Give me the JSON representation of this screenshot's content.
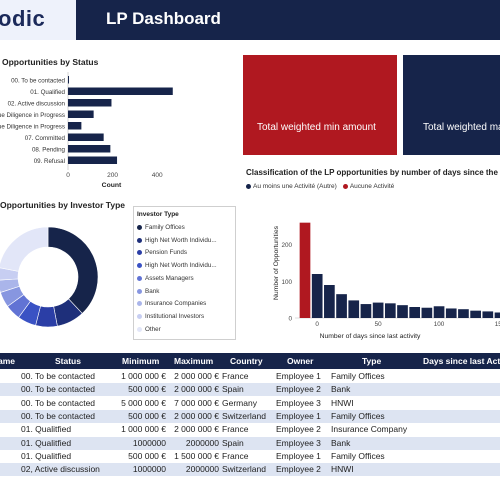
{
  "header": {
    "logo": "odic",
    "title": "LP Dashboard"
  },
  "status_chart": {
    "title": "Opportunities by Status",
    "xlabel": "Count",
    "ticks": [
      "0",
      "200",
      "400"
    ],
    "categories": [
      "00. To be contacted",
      "01. Qualified",
      "02. Active discussion",
      "ue Diligence in Progress",
      "ue Diligence in Progress",
      "07. Committed",
      "08. Pending",
      "09. Refusal"
    ],
    "chart_data": {
      "type": "bar",
      "categories": [
        "00. To be contacted",
        "01. Qualified",
        "02. Active discussion",
        "ue Diligence in Progress",
        "ue Diligence in Progress",
        "07. Committed",
        "08. Pending",
        "09. Refusal"
      ],
      "values": [
        3,
        470,
        195,
        115,
        60,
        160,
        190,
        220
      ],
      "xlabel": "Count",
      "xlim": [
        0,
        480
      ]
    }
  },
  "kpis": {
    "min_label": "Total weighted min amount",
    "max_label": "Total weighted max"
  },
  "investor_chart": {
    "title": "Opportunities by Investor Type",
    "legend_title": "Investor Type",
    "legend": [
      {
        "label": "Family Offices",
        "color": "#16244a"
      },
      {
        "label": "High Net Worth Individu...",
        "color": "#1e2f7a"
      },
      {
        "label": "Pension Funds",
        "color": "#2b3ea6"
      },
      {
        "label": "High Net Worth Individu...",
        "color": "#3a52c4"
      },
      {
        "label": "Assets Managers",
        "color": "#6173d4"
      },
      {
        "label": "Bank",
        "color": "#8796e0"
      },
      {
        "label": "Insurance Companies",
        "color": "#aab5ea"
      },
      {
        "label": "Institutional Investors",
        "color": "#c7cef2"
      },
      {
        "label": "Other",
        "color": "#e2e6f8"
      }
    ],
    "chart_data": {
      "type": "pie",
      "labels": [
        "Family Offices",
        "High Net Worth Individu...",
        "Pension Funds",
        "High Net Worth Individu...",
        "Assets Managers",
        "Bank",
        "Insurance Companies",
        "Institutional Investors",
        "Other"
      ],
      "values": [
        38,
        9,
        7,
        6,
        5,
        5,
        4,
        4,
        22
      ]
    }
  },
  "days_chart": {
    "title": "Classification of the LP opportunities by number of days since the last",
    "legend": [
      {
        "label": "Au moins une Activité (Autre)",
        "color": "#16244a"
      },
      {
        "label": "Aucune Activité",
        "color": "#b01820"
      }
    ],
    "ylabel": "Number of Opportunities",
    "xlabel": "Number of days since last activity",
    "yticks": [
      "0",
      "100",
      "200"
    ],
    "xticks": [
      "0",
      "50",
      "100",
      "150"
    ],
    "chart_data": {
      "type": "bar",
      "series": [
        {
          "name": "Aucune Activité",
          "x": [
            -10
          ],
          "values": [
            260
          ]
        },
        {
          "name": "Au moins une Activité (Autre)",
          "x": [
            0,
            10,
            20,
            30,
            40,
            50,
            60,
            70,
            80,
            90,
            100,
            110,
            120,
            130,
            140,
            150
          ],
          "values": [
            120,
            90,
            65,
            48,
            38,
            42,
            40,
            35,
            30,
            28,
            32,
            26,
            24,
            20,
            18,
            15
          ]
        }
      ],
      "xlabel": "Number of days since last activity",
      "ylabel": "Number of Opportunities",
      "ylim": [
        0,
        300
      ]
    }
  },
  "table": {
    "headers": [
      "ame",
      "Status",
      "Minimum",
      "Maximum",
      "Country",
      "Owner",
      "Type",
      "Days since last Act"
    ],
    "rows": [
      [
        "",
        "00. To be contacted",
        "1 000 000 €",
        "2 000 000 €",
        "France",
        "Employee 1",
        "Family Offices",
        ""
      ],
      [
        "",
        "00. To be contacted",
        "500 000 €",
        "2 000 000 €",
        "Spain",
        "Employee 2",
        "Bank",
        ""
      ],
      [
        "",
        "00. To be contacted",
        "5 000 000 €",
        "7 000 000 €",
        "Germany",
        "Employee 3",
        "HNWI",
        ""
      ],
      [
        "",
        "00. To be contacted",
        "500 000 €",
        "2 000 000 €",
        "Switzerland",
        "Employee 1",
        "Family Offices",
        ""
      ],
      [
        "",
        "01. Qualitfied",
        "1 000 000 €",
        "2 000 000 €",
        "France",
        "Employee 2",
        "Insurance Company",
        ""
      ],
      [
        "",
        "01. Qualitfied",
        "1000000",
        "2000000",
        "Spain",
        "Employee 3",
        "Bank",
        ""
      ],
      [
        "",
        "01. Qualitfied",
        "500 000 €",
        "1 500 000 €",
        "France",
        "Employee 1",
        "Family Offices",
        ""
      ],
      [
        "",
        "02, Active discussion",
        "1000000",
        "2000000",
        "Switzerland",
        "Employee 2",
        "HNWI",
        ""
      ]
    ]
  }
}
